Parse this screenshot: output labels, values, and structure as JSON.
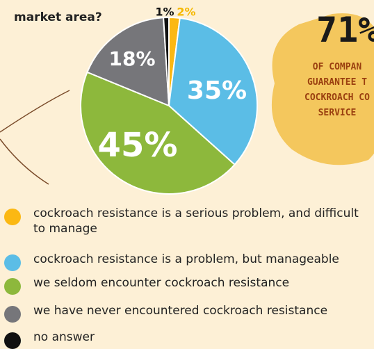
{
  "chart_data": {
    "type": "pie",
    "title": "market area?",
    "categories": [
      "cockroach resistance is a serious problem, and difficult to manage",
      "cockroach resistance is a problem, but manageable",
      "we seldom encounter cockroach resistance",
      "we have never encountered cockroach resistance",
      "no answer"
    ],
    "values": [
      2,
      35,
      45,
      18,
      1
    ],
    "value_labels": [
      "2%",
      "35%",
      "45%",
      "18%",
      "1%"
    ],
    "colors": [
      "#fbb813",
      "#5bbde6",
      "#8db83c",
      "#76767a",
      "#111111"
    ],
    "badge": {
      "headline": "71%",
      "lines": [
        "OF COMPAN",
        "GUARANTEE T",
        "COCKROACH CO",
        "SERVICE"
      ]
    }
  }
}
